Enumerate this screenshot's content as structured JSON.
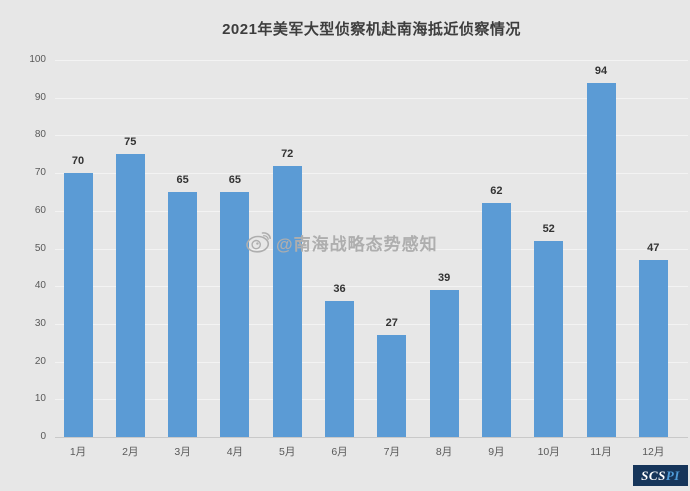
{
  "page": {
    "background": "#e7e7e7"
  },
  "chart_data": {
    "type": "bar",
    "title": "2021年美军大型侦察机赴南海抵近侦察情况",
    "categories": [
      "1月",
      "2月",
      "3月",
      "4月",
      "5月",
      "6月",
      "7月",
      "8月",
      "9月",
      "10月",
      "11月",
      "12月"
    ],
    "values": [
      70,
      75,
      65,
      65,
      72,
      36,
      27,
      39,
      62,
      52,
      94,
      47
    ],
    "xlabel": "",
    "ylabel": "",
    "ylim": [
      0,
      100
    ],
    "ytick_step": 10,
    "yticks": [
      0,
      10,
      20,
      30,
      40,
      50,
      60,
      70,
      80,
      90,
      100
    ],
    "grid": "horizontal",
    "legend": "none",
    "bar_color": "#5b9bd5",
    "value_labels_shown": true
  },
  "watermark": {
    "icon": "weibo-icon",
    "text": "@南海战略态势感知",
    "color": "#aeaeae"
  },
  "logo": {
    "text_primary": "SCS",
    "text_secondary": "PI",
    "background": "#16355a",
    "primary_color": "#ffffff",
    "secondary_color": "#4f9bd8"
  },
  "colors": {
    "title": "#3d3d3d",
    "axis_labels": "#595959",
    "value_labels": "#333333",
    "gridline": "#f3f3f3",
    "baseline": "#c9c9c9"
  }
}
